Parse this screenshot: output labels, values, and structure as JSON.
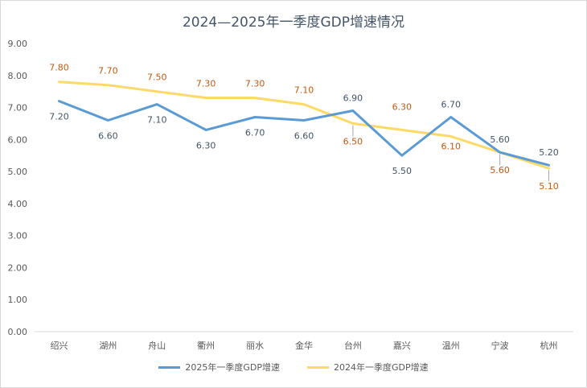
{
  "chart_data": {
    "type": "line",
    "title": "2024—2025年一季度GDP增速情况",
    "categories": [
      "绍兴",
      "湖州",
      "舟山",
      "衢州",
      "丽水",
      "金华",
      "台州",
      "嘉兴",
      "温州",
      "宁波",
      "杭州"
    ],
    "series": [
      {
        "name": "2025年一季度GDP增速",
        "color": "#5b9bd5",
        "values": [
          7.2,
          6.6,
          7.1,
          6.3,
          6.7,
          6.6,
          6.9,
          5.5,
          6.7,
          5.6,
          5.2
        ],
        "labels": [
          "7.20",
          "6.60",
          "7.10",
          "6.30",
          "6.70",
          "6.60",
          "6.90",
          "5.50",
          "6.70",
          "5.60",
          "5.20"
        ],
        "label_color": "#44546a"
      },
      {
        "name": "2024年一季度GDP增速",
        "color": "#ffd966",
        "values": [
          7.8,
          7.7,
          7.5,
          7.3,
          7.3,
          7.1,
          6.5,
          6.3,
          6.1,
          5.6,
          5.1
        ],
        "labels": [
          "7.80",
          "7.70",
          "7.50",
          "7.30",
          "7.30",
          "7.10",
          "6.50",
          "6.30",
          "6.10",
          "5.60",
          "5.10"
        ],
        "label_color": "#c55a11"
      }
    ],
    "y_ticks": [
      "0.00",
      "1.00",
      "2.00",
      "3.00",
      "4.00",
      "5.00",
      "6.00",
      "7.00",
      "8.00",
      "9.00"
    ],
    "ylim": [
      0,
      9
    ],
    "grid": false,
    "legend_position": "bottom"
  }
}
